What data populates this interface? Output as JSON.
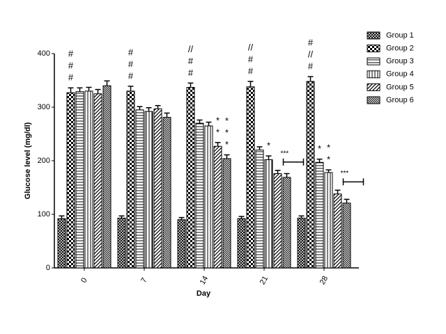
{
  "chart_data": {
    "type": "bar",
    "x_label": "Day",
    "y_label": "Glucose level (mg/dl)",
    "categories": [
      "0",
      "7",
      "14",
      "21",
      "28"
    ],
    "ylim": [
      0,
      400
    ],
    "yticks": [
      0,
      100,
      200,
      300,
      400
    ],
    "series": [
      {
        "name": "Group 1",
        "color": "#000000",
        "pattern": "crosshatch",
        "values": [
          92,
          93,
          90,
          92,
          93
        ],
        "errors": [
          5,
          4,
          4,
          4,
          4
        ]
      },
      {
        "name": "Group 2",
        "color": "#000000",
        "pattern": "checker",
        "values": [
          327,
          330,
          337,
          338,
          348
        ],
        "errors": [
          9,
          9,
          8,
          10,
          9
        ]
      },
      {
        "name": "Group 3",
        "color": "#000000",
        "pattern": "horizontal",
        "values": [
          329,
          295,
          270,
          220,
          197
        ],
        "errors": [
          7,
          6,
          6,
          6,
          6
        ]
      },
      {
        "name": "Group 4",
        "color": "#000000",
        "pattern": "vertical",
        "values": [
          330,
          292,
          265,
          202,
          178
        ],
        "errors": [
          7,
          7,
          7,
          7,
          5
        ]
      },
      {
        "name": "Group 5",
        "color": "#000000",
        "pattern": "diagonal",
        "values": [
          325,
          297,
          227,
          176,
          138
        ],
        "errors": [
          8,
          6,
          7,
          6,
          7
        ]
      },
      {
        "name": "Group 6",
        "color": "#000000",
        "pattern": "dense-diagonal",
        "values": [
          340,
          281,
          204,
          169,
          121
        ],
        "errors": [
          9,
          8,
          7,
          7,
          7
        ]
      }
    ],
    "annotations": [
      {
        "category": 0,
        "series": 1,
        "lines": [
          "#",
          "#",
          "#"
        ]
      },
      {
        "category": 1,
        "series": 1,
        "lines": [
          "#",
          "#",
          "#"
        ]
      },
      {
        "category": 2,
        "series": 1,
        "lines": [
          "//",
          "#",
          "#"
        ]
      },
      {
        "category": 2,
        "series": 4,
        "lines": [
          "*",
          "*"
        ]
      },
      {
        "category": 2,
        "series": 5,
        "lines": [
          "*",
          "*",
          "*"
        ]
      },
      {
        "category": 3,
        "series": 1,
        "lines": [
          "//",
          "#",
          "#"
        ]
      },
      {
        "category": 3,
        "series": 3,
        "lines": [
          "*"
        ]
      },
      {
        "category": 4,
        "series": 1,
        "lines": [
          "#",
          "//",
          "#"
        ]
      },
      {
        "category": 4,
        "series": 2,
        "lines": [
          "*"
        ]
      },
      {
        "category": 4,
        "series": 3,
        "lines": [
          "*",
          "*"
        ]
      }
    ],
    "brackets": [
      {
        "category": 3,
        "text": "***"
      },
      {
        "category": 4,
        "text": "***"
      }
    ]
  }
}
